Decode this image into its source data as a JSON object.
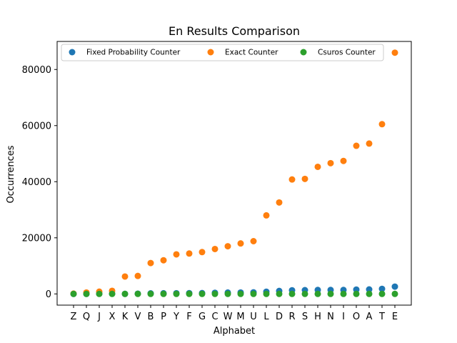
{
  "chart_data": {
    "type": "scatter",
    "title": "En Results Comparison",
    "xlabel": "Alphabet",
    "ylabel": "Occurrences",
    "ylim": [
      -4000,
      90000
    ],
    "yticks": [
      0,
      20000,
      40000,
      60000,
      80000
    ],
    "categories": [
      "Z",
      "Q",
      "J",
      "X",
      "K",
      "V",
      "B",
      "P",
      "Y",
      "F",
      "G",
      "C",
      "W",
      "M",
      "U",
      "L",
      "D",
      "R",
      "S",
      "H",
      "N",
      "I",
      "O",
      "A",
      "T",
      "E"
    ],
    "legend_position": "top",
    "grid": false,
    "series": [
      {
        "name": "Fixed Probability Counter",
        "color": "#1f77b4",
        "values": [
          0,
          0,
          50,
          100,
          0,
          80,
          200,
          230,
          250,
          280,
          300,
          400,
          480,
          500,
          560,
          780,
          1050,
          1300,
          1350,
          1400,
          1400,
          1400,
          1550,
          1600,
          1800,
          2600
        ]
      },
      {
        "name": "Exact Counter",
        "color": "#ff7f0e",
        "values": [
          100,
          500,
          800,
          1100,
          6200,
          6400,
          11000,
          12000,
          14100,
          14400,
          14900,
          16000,
          17000,
          18000,
          18800,
          28000,
          32600,
          40800,
          41000,
          45300,
          46600,
          47400,
          52800,
          53600,
          60500,
          86000
        ]
      },
      {
        "name": "Csuros Counter",
        "color": "#2ca02c",
        "values": [
          0,
          0,
          0,
          0,
          0,
          0,
          0,
          0,
          0,
          0,
          0,
          0,
          0,
          0,
          0,
          0,
          0,
          0,
          0,
          0,
          0,
          0,
          0,
          0,
          0,
          0
        ]
      }
    ]
  }
}
